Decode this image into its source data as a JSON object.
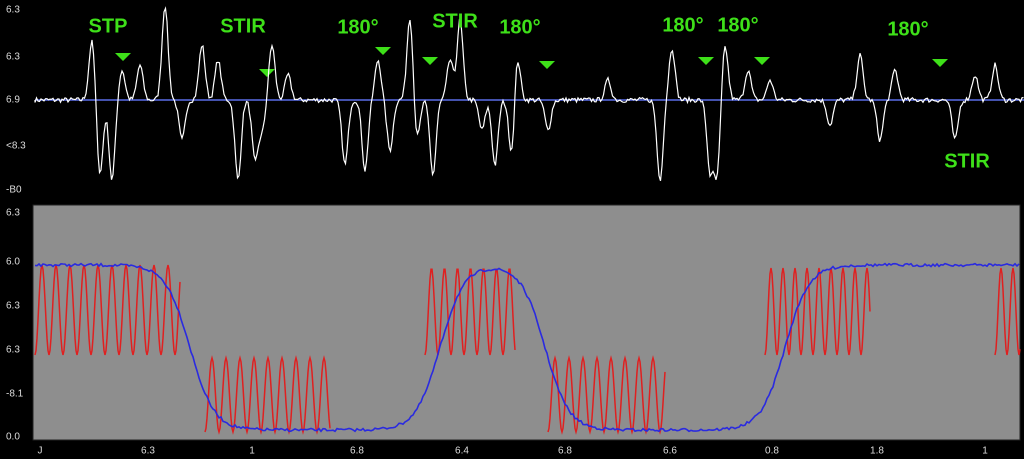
{
  "top_panel": {
    "y_labels": [
      "6.3",
      "6.3",
      "6.9",
      "<8.3",
      "-B0"
    ],
    "annotations": [
      "STP",
      "STIR",
      "180°",
      "STIR",
      "180°",
      "180°",
      "180°",
      "180°",
      "STIR"
    ]
  },
  "bottom_panel": {
    "y_labels": [
      "6.3",
      "6.0",
      "6.3",
      "6.3",
      "-8.1",
      "0.0"
    ],
    "x_labels": [
      "J",
      "6.3",
      "1",
      "6.8",
      "6.4",
      "6.8",
      "6.6",
      "0.8",
      "1.8",
      "1"
    ]
  }
}
